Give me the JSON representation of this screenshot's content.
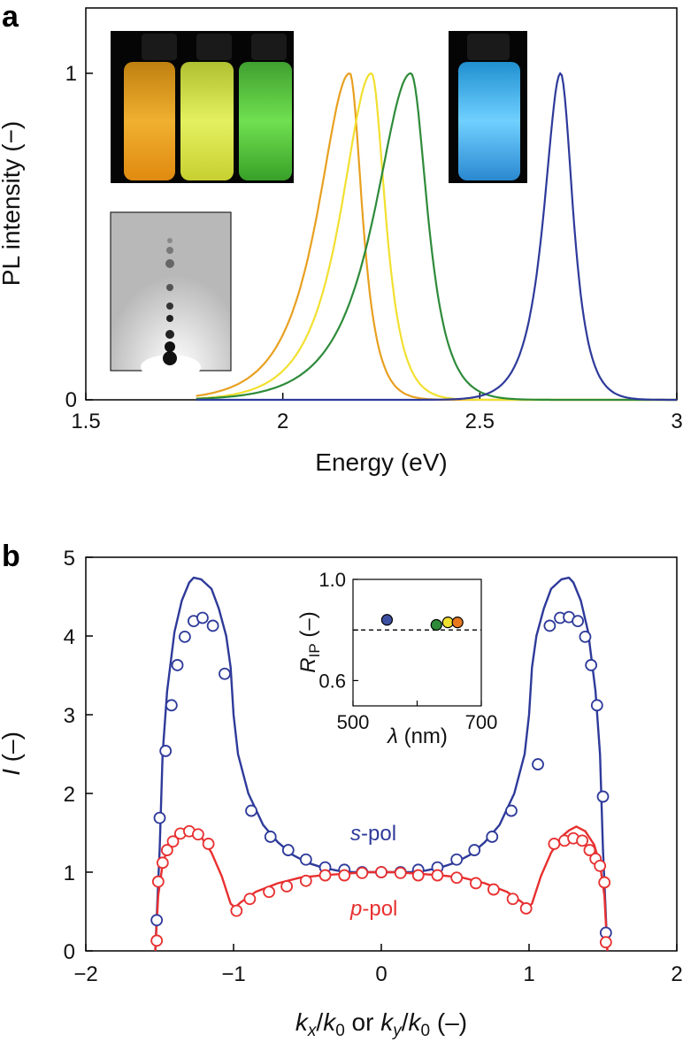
{
  "chart_data": [
    {
      "panel": "a",
      "type": "line",
      "xlabel": "Energy (eV)",
      "ylabel": "PL intensity (−)",
      "xlim": [
        1.5,
        3
      ],
      "ylim": [
        0,
        1.2
      ],
      "xticks": [
        "1.5",
        "2",
        "2.5",
        "3"
      ],
      "yticks": [
        "0",
        "1"
      ],
      "series": [
        {
          "name": "orange",
          "color": "#E8A020",
          "center": 2.17,
          "width_left": 0.115,
          "width_right": 0.045,
          "start": 1.78
        },
        {
          "name": "yellow",
          "color": "#F2E030",
          "center": 2.225,
          "width_left": 0.11,
          "width_right": 0.05,
          "start": 1.78
        },
        {
          "name": "green",
          "color": "#2E8B3A",
          "center": 2.325,
          "width_left": 0.13,
          "width_right": 0.06,
          "start": 1.78
        },
        {
          "name": "blue",
          "color": "#2E3A9A",
          "center": 2.705,
          "width_left": 0.06,
          "width_right": 0.045,
          "start": 1.78
        }
      ],
      "insets": [
        "vials-orange-yellow-green",
        "vial-blue",
        "diffraction-pattern"
      ]
    },
    {
      "panel": "b",
      "type": "line+scatter",
      "xlabel": "kₓ/k₀ or kᵧ/k₀ (–)",
      "ylabel": "I (–)",
      "xlim": [
        -2,
        2
      ],
      "ylim": [
        0,
        5
      ],
      "xticks": [
        "−2",
        "−1",
        "0",
        "1",
        "2"
      ],
      "yticks": [
        "0",
        "1",
        "2",
        "3",
        "4",
        "5"
      ],
      "series": [
        {
          "name": "s-pol",
          "color": "#2E3A9A",
          "fit": [
            [
              -1.53,
              0
            ],
            [
              -1.5,
              1.3
            ],
            [
              -1.48,
              2.5
            ],
            [
              -1.45,
              3.3
            ],
            [
              -1.4,
              4.05
            ],
            [
              -1.35,
              4.45
            ],
            [
              -1.3,
              4.68
            ],
            [
              -1.27,
              4.74
            ],
            [
              -1.22,
              4.72
            ],
            [
              -1.15,
              4.6
            ],
            [
              -1.1,
              4.35
            ],
            [
              -1.05,
              4.0
            ],
            [
              -1.02,
              3.6
            ],
            [
              -1.0,
              3.0
            ],
            [
              -0.97,
              2.5
            ],
            [
              -0.9,
              2.0
            ],
            [
              -0.8,
              1.6
            ],
            [
              -0.7,
              1.38
            ],
            [
              -0.6,
              1.22
            ],
            [
              -0.5,
              1.12
            ],
            [
              -0.4,
              1.06
            ],
            [
              -0.3,
              1.02
            ],
            [
              -0.2,
              1.0
            ],
            [
              -0.1,
              1.0
            ],
            [
              0,
              1.0
            ],
            [
              0.1,
              1.0
            ],
            [
              0.2,
              1.0
            ],
            [
              0.3,
              1.02
            ],
            [
              0.4,
              1.06
            ],
            [
              0.5,
              1.12
            ],
            [
              0.6,
              1.22
            ],
            [
              0.7,
              1.38
            ],
            [
              0.8,
              1.6
            ],
            [
              0.9,
              2.0
            ],
            [
              0.97,
              2.5
            ],
            [
              1.0,
              3.0
            ],
            [
              1.02,
              3.6
            ],
            [
              1.05,
              4.0
            ],
            [
              1.1,
              4.35
            ],
            [
              1.15,
              4.6
            ],
            [
              1.22,
              4.72
            ],
            [
              1.27,
              4.74
            ],
            [
              1.3,
              4.68
            ],
            [
              1.35,
              4.45
            ],
            [
              1.4,
              4.05
            ],
            [
              1.45,
              3.3
            ],
            [
              1.48,
              2.5
            ],
            [
              1.5,
              1.3
            ],
            [
              1.53,
              0
            ]
          ],
          "points": [
            [
              -1.52,
              0.39
            ],
            [
              -1.5,
              1.69
            ],
            [
              -1.46,
              2.54
            ],
            [
              -1.42,
              3.12
            ],
            [
              -1.38,
              3.63
            ],
            [
              -1.33,
              3.99
            ],
            [
              -1.27,
              4.19
            ],
            [
              -1.21,
              4.23
            ],
            [
              -1.14,
              4.13
            ],
            [
              -1.06,
              3.52
            ],
            [
              -0.88,
              1.78
            ],
            [
              -0.75,
              1.45
            ],
            [
              -0.63,
              1.28
            ],
            [
              -0.51,
              1.16
            ],
            [
              -0.38,
              1.06
            ],
            [
              -0.25,
              1.03
            ],
            [
              -0.13,
              1.0
            ],
            [
              0.0,
              1.0
            ],
            [
              0.13,
              1.0
            ],
            [
              0.25,
              1.03
            ],
            [
              0.38,
              1.06
            ],
            [
              0.51,
              1.16
            ],
            [
              0.63,
              1.28
            ],
            [
              0.75,
              1.45
            ],
            [
              0.88,
              1.78
            ],
            [
              1.06,
              2.37
            ],
            [
              1.14,
              4.13
            ],
            [
              1.21,
              4.23
            ],
            [
              1.27,
              4.24
            ],
            [
              1.33,
              4.19
            ],
            [
              1.38,
              3.99
            ],
            [
              1.42,
              3.63
            ],
            [
              1.46,
              3.12
            ],
            [
              1.5,
              1.96
            ],
            [
              1.52,
              0.23
            ]
          ]
        },
        {
          "name": "p-pol",
          "color": "#E83030",
          "fit": [
            [
              -1.53,
              0
            ],
            [
              -1.51,
              0.7
            ],
            [
              -1.48,
              1.1
            ],
            [
              -1.44,
              1.35
            ],
            [
              -1.38,
              1.5
            ],
            [
              -1.32,
              1.56
            ],
            [
              -1.27,
              1.53
            ],
            [
              -1.22,
              1.45
            ],
            [
              -1.15,
              1.25
            ],
            [
              -1.08,
              0.95
            ],
            [
              -1.02,
              0.6
            ],
            [
              -0.99,
              0.55
            ],
            [
              -0.95,
              0.62
            ],
            [
              -0.85,
              0.75
            ],
            [
              -0.7,
              0.86
            ],
            [
              -0.55,
              0.93
            ],
            [
              -0.4,
              0.96
            ],
            [
              -0.25,
              0.98
            ],
            [
              -0.1,
              1.0
            ],
            [
              0,
              1.0
            ],
            [
              0.1,
              1.0
            ],
            [
              0.25,
              0.98
            ],
            [
              0.4,
              0.96
            ],
            [
              0.55,
              0.93
            ],
            [
              0.7,
              0.86
            ],
            [
              0.85,
              0.75
            ],
            [
              0.95,
              0.62
            ],
            [
              0.99,
              0.55
            ],
            [
              1.02,
              0.6
            ],
            [
              1.08,
              0.95
            ],
            [
              1.15,
              1.25
            ],
            [
              1.22,
              1.45
            ],
            [
              1.27,
              1.53
            ],
            [
              1.32,
              1.58
            ],
            [
              1.38,
              1.52
            ],
            [
              1.44,
              1.35
            ],
            [
              1.48,
              1.1
            ],
            [
              1.51,
              0.7
            ],
            [
              1.53,
              0
            ]
          ],
          "points": [
            [
              -1.52,
              0.13
            ],
            [
              -1.51,
              0.88
            ],
            [
              -1.48,
              1.12
            ],
            [
              -1.45,
              1.28
            ],
            [
              -1.41,
              1.39
            ],
            [
              -1.36,
              1.49
            ],
            [
              -1.3,
              1.52
            ],
            [
              -1.24,
              1.48
            ],
            [
              -1.17,
              1.36
            ],
            [
              -0.98,
              0.51
            ],
            [
              -0.89,
              0.66
            ],
            [
              -0.76,
              0.75
            ],
            [
              -0.64,
              0.82
            ],
            [
              -0.51,
              0.89
            ],
            [
              -0.38,
              0.96
            ],
            [
              -0.25,
              0.96
            ],
            [
              -0.13,
              0.99
            ],
            [
              0.0,
              1.0
            ],
            [
              0.13,
              0.99
            ],
            [
              0.25,
              0.96
            ],
            [
              0.38,
              0.96
            ],
            [
              0.51,
              0.93
            ],
            [
              0.64,
              0.86
            ],
            [
              0.76,
              0.78
            ],
            [
              0.89,
              0.66
            ],
            [
              0.98,
              0.54
            ],
            [
              1.17,
              1.36
            ],
            [
              1.24,
              1.4
            ],
            [
              1.3,
              1.43
            ],
            [
              1.36,
              1.4
            ],
            [
              1.41,
              1.28
            ],
            [
              1.45,
              1.17
            ],
            [
              1.48,
              1.08
            ],
            [
              1.51,
              0.87
            ],
            [
              1.52,
              0.11
            ]
          ]
        }
      ],
      "annotations": {
        "s_label_italic": "s",
        "s_label_rest": "-pol",
        "p_label_italic": "p",
        "p_label_rest": "-pol"
      },
      "inset": {
        "xlabel_symbol": "λ",
        "xlabel_unit": " (nm)",
        "ylabel_main": "R",
        "ylabel_sub": "IP",
        "ylabel_unit": " (–)",
        "xlim": [
          500,
          700
        ],
        "ylim": [
          0.5,
          1.0
        ],
        "xticks": [
          "500",
          "700"
        ],
        "yticks": [
          "0.6",
          "1.0"
        ],
        "threshold": 0.8,
        "points": [
          {
            "x": 553,
            "y": 0.84,
            "color": "#3D4FA0"
          },
          {
            "x": 630,
            "y": 0.82,
            "color": "#2E8B3A"
          },
          {
            "x": 648,
            "y": 0.83,
            "color": "#F2E030"
          },
          {
            "x": 663,
            "y": 0.83,
            "color": "#E87820"
          }
        ]
      }
    }
  ],
  "panel_labels": {
    "a": "a",
    "b": "b"
  }
}
